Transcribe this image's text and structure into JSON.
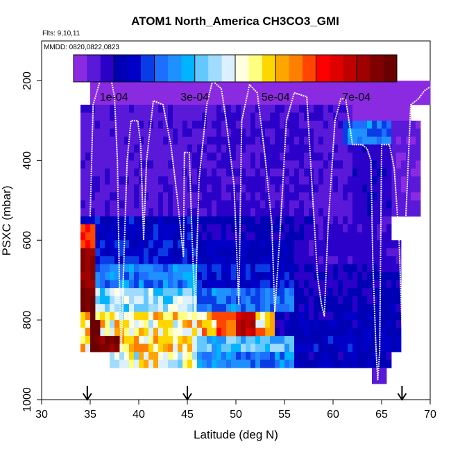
{
  "chart_data": {
    "type": "heatmap",
    "title": "ATOM1 North_America CH3CO3_GMI",
    "flights_label": "Flts: 9,10,11",
    "dates_label": "MMDD: 0820,0822,0823",
    "xlabel": "Latitude (deg N)",
    "ylabel": "PSXC (mbar)",
    "xlim": [
      30,
      70
    ],
    "ylim": [
      1000,
      100
    ],
    "x_ticks": [
      "30",
      "35",
      "40",
      "45",
      "50",
      "55",
      "60",
      "65",
      "70"
    ],
    "y_ticks": [
      "200",
      "400",
      "600",
      "800",
      "1000"
    ],
    "x_tick_values": [
      30,
      35,
      40,
      45,
      50,
      55,
      60,
      65,
      70
    ],
    "y_tick_values": [
      200,
      400,
      600,
      800,
      1000
    ],
    "colorbar": {
      "vmin": 0,
      "vmax": 0.0008,
      "tick_labels": [
        "1e-04",
        "3e-04",
        "5e-04",
        "7e-04"
      ],
      "tick_values": [
        0.0001,
        0.0003,
        0.0005,
        0.0007
      ],
      "colors": [
        "#8a2be2",
        "#5a19d8",
        "#2b00c8",
        "#0000b4",
        "#0000c8",
        "#0a3ce6",
        "#1e6eff",
        "#1e90ff",
        "#00b4ff",
        "#64c8ff",
        "#a0dcff",
        "#dcf0ff",
        "#ffffe0",
        "#ffff80",
        "#ffd700",
        "#ffa500",
        "#ff7f00",
        "#ff4500",
        "#ff0000",
        "#e00000",
        "#c00000",
        "#a00000",
        "#800000",
        "#6a0000"
      ]
    },
    "arrows_latitude": [
      34.7,
      45,
      67.1
    ],
    "cell_size": {
      "lat": 0.5,
      "pressure": 20
    },
    "layers": [
      {
        "p": [
          180,
          260
        ],
        "lat": [
          35,
          42
        ],
        "value": 2e-05
      },
      {
        "p": [
          180,
          260
        ],
        "lat": [
          42,
          52
        ],
        "value": 2.5e-05
      },
      {
        "p": [
          180,
          260
        ],
        "lat": [
          52,
          58
        ],
        "value": 2e-05
      },
      {
        "p": [
          200,
          260
        ],
        "lat": [
          58,
          70
        ],
        "value": 2.5e-05
      },
      {
        "p": [
          260,
          540
        ],
        "lat": [
          34,
          46
        ],
        "value": 6e-05
      },
      {
        "p": [
          260,
          540
        ],
        "lat": [
          46,
          58
        ],
        "value": 7e-05
      },
      {
        "p": [
          260,
          540
        ],
        "lat": [
          58,
          62
        ],
        "value": 6e-05
      },
      {
        "p": [
          260,
          300
        ],
        "lat": [
          62,
          68
        ],
        "value": 2e-05
      },
      {
        "p": [
          300,
          360
        ],
        "lat": [
          61,
          66
        ],
        "value": 0.00022
      },
      {
        "p": [
          300,
          540
        ],
        "lat": [
          66,
          69
        ],
        "value": 4e-05
      },
      {
        "p": [
          360,
          540
        ],
        "lat": [
          62,
          66
        ],
        "value": 9e-05
      },
      {
        "p": [
          540,
          600
        ],
        "lat": [
          34,
          46
        ],
        "value": 0.00014
      },
      {
        "p": [
          540,
          600
        ],
        "lat": [
          46,
          58
        ],
        "value": 0.00011
      },
      {
        "p": [
          540,
          600
        ],
        "lat": [
          58,
          66
        ],
        "value": 7e-05
      },
      {
        "p": [
          600,
          660
        ],
        "lat": [
          34,
          46
        ],
        "value": 0.00016
      },
      {
        "p": [
          600,
          660
        ],
        "lat": [
          46,
          56
        ],
        "value": 0.00013
      },
      {
        "p": [
          600,
          660
        ],
        "lat": [
          56,
          67
        ],
        "value": 8e-05
      },
      {
        "p": [
          660,
          720
        ],
        "lat": [
          34,
          46
        ],
        "value": 0.00024
      },
      {
        "p": [
          660,
          720
        ],
        "lat": [
          46,
          56
        ],
        "value": 0.00016
      },
      {
        "p": [
          660,
          720
        ],
        "lat": [
          56,
          67
        ],
        "value": 0.0001
      },
      {
        "p": [
          720,
          780
        ],
        "lat": [
          34,
          46
        ],
        "value": 0.00034
      },
      {
        "p": [
          720,
          780
        ],
        "lat": [
          46,
          56
        ],
        "value": 0.00022
      },
      {
        "p": [
          720,
          780
        ],
        "lat": [
          56,
          67
        ],
        "value": 0.00011
      },
      {
        "p": [
          780,
          840
        ],
        "lat": [
          34,
          46
        ],
        "value": 0.00045
      },
      {
        "p": [
          780,
          840
        ],
        "lat": [
          46,
          54
        ],
        "value": 0.00048
      },
      {
        "p": [
          780,
          840
        ],
        "lat": [
          54,
          67
        ],
        "value": 0.00012
      },
      {
        "p": [
          840,
          880
        ],
        "lat": [
          34,
          46
        ],
        "value": 0.00047
      },
      {
        "p": [
          840,
          880
        ],
        "lat": [
          46,
          56
        ],
        "value": 0.0003
      },
      {
        "p": [
          840,
          880
        ],
        "lat": [
          56,
          67
        ],
        "value": 0.00014
      },
      {
        "p": [
          880,
          920
        ],
        "lat": [
          37,
          46
        ],
        "value": 0.00042
      },
      {
        "p": [
          880,
          920
        ],
        "lat": [
          46,
          56
        ],
        "value": 0.00024
      },
      {
        "p": [
          880,
          920
        ],
        "lat": [
          56,
          66
        ],
        "value": 0.00012
      },
      {
        "p": [
          920,
          960
        ],
        "lat": [
          64,
          65.5
        ],
        "value": 5e-05
      }
    ],
    "edge_cells": [
      {
        "p": [
          560,
          620
        ],
        "lat": [
          34,
          35.5
        ],
        "value": 0.0006
      },
      {
        "p": [
          620,
          720
        ],
        "lat": [
          34,
          35.5
        ],
        "value": 0.00074
      },
      {
        "p": [
          720,
          780
        ],
        "lat": [
          34,
          35.5
        ],
        "value": 0.00077
      },
      {
        "p": [
          780,
          880
        ],
        "lat": [
          35,
          35.5
        ],
        "value": 0.0008
      },
      {
        "p": [
          840,
          880
        ],
        "lat": [
          35.5,
          36
        ],
        "value": 0.0008
      }
    ],
    "hotspots": [
      {
        "p": [
          780,
          840
        ],
        "lat": [
          48,
          50
        ],
        "value": 0.00058
      },
      {
        "p": [
          780,
          840
        ],
        "lat": [
          50,
          52
        ],
        "value": 0.00068
      },
      {
        "p": [
          840,
          880
        ],
        "lat": [
          36,
          38
        ],
        "value": 0.00075
      },
      {
        "p": [
          800,
          880
        ],
        "lat": [
          35.5,
          36
        ],
        "value": 0.00079
      }
    ],
    "flight_track": [
      [
        35.0,
        540
      ],
      [
        35.3,
        260
      ],
      [
        36.2,
        185
      ],
      [
        37.1,
        190
      ],
      [
        37.5,
        240
      ],
      [
        37.8,
        400
      ],
      [
        38.0,
        700
      ],
      [
        38.2,
        880
      ],
      [
        38.4,
        700
      ],
      [
        38.8,
        400
      ],
      [
        39.2,
        300
      ],
      [
        39.9,
        300
      ],
      [
        40.2,
        360
      ],
      [
        40.5,
        600
      ],
      [
        40.8,
        400
      ],
      [
        41.5,
        250
      ],
      [
        42.5,
        260
      ],
      [
        43.3,
        360
      ],
      [
        44.0,
        500
      ],
      [
        44.6,
        640
      ],
      [
        44.7,
        380
      ],
      [
        45.2,
        380
      ],
      [
        45.5,
        600
      ],
      [
        45.8,
        780
      ],
      [
        46.2,
        450
      ],
      [
        47.0,
        260
      ],
      [
        47.6,
        200
      ],
      [
        48.5,
        220
      ],
      [
        49.0,
        300
      ],
      [
        49.8,
        460
      ],
      [
        50.0,
        580
      ],
      [
        50.3,
        760
      ],
      [
        50.6,
        300
      ],
      [
        51.4,
        210
      ],
      [
        52.2,
        230
      ],
      [
        53.0,
        390
      ],
      [
        53.7,
        560
      ],
      [
        54.0,
        780
      ],
      [
        54.5,
        600
      ],
      [
        55.2,
        300
      ],
      [
        56.0,
        230
      ],
      [
        57.3,
        240
      ],
      [
        57.8,
        450
      ],
      [
        58.4,
        690
      ],
      [
        58.8,
        760
      ],
      [
        59.1,
        790
      ],
      [
        59.5,
        560
      ],
      [
        60.2,
        300
      ],
      [
        60.8,
        245
      ],
      [
        61.3,
        245
      ],
      [
        62.0,
        360
      ],
      [
        63.0,
        360
      ],
      [
        63.5,
        370
      ],
      [
        63.9,
        400
      ],
      [
        64.1,
        660
      ],
      [
        64.4,
        860
      ],
      [
        64.6,
        950
      ],
      [
        64.8,
        880
      ],
      [
        65.0,
        360
      ],
      [
        65.8,
        360
      ],
      [
        66.3,
        420
      ],
      [
        66.8,
        600
      ],
      [
        67.1,
        820
      ],
      [
        67.3,
        650
      ],
      [
        68.0,
        260
      ],
      [
        68.8,
        245
      ],
      [
        69.4,
        225
      ],
      [
        70.0,
        215
      ]
    ]
  }
}
